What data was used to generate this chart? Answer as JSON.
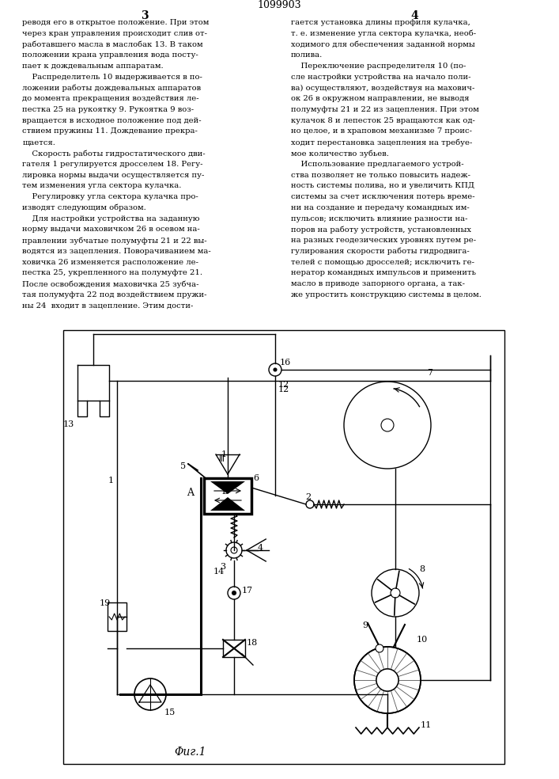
{
  "patent_number": "1099903",
  "page_left": "3",
  "page_right": "4",
  "col1_lines": [
    "реводя его в открытое положение. При этом",
    "через кран управления происходит слив от-",
    "работавшего масла в маслобак 13. В таком",
    "положении крана управления вода посту-",
    "пает к дождевальным аппаратам.",
    "    Распределитель 10 выдерживается в по-",
    "ложении работы дождевальных аппаратов",
    "до момента прекращения воздействия ле-",
    "пестка 25 на рукоятку 9. Рукоятка 9 воз-",
    "вращается в исходное положение под дей-",
    "ствием пружины 11. Дождевание прекра-",
    "щается.",
    "    Скорость работы гидростатического дви-",
    "гателя 1 регулируется дросселем 18. Регу-",
    "лировка нормы выдачи осуществляется пу-",
    "тем изменения угла сектора кулачка.",
    "    Регулировку угла сектора кулачка про-",
    "изводят следующим образом.",
    "    Для настройки устройства на заданную",
    "норму выдачи маховичком 26 в осевом на-",
    "правлении зубчатые полумуфты 21 и 22 вы-",
    "водятся из зацепления. Поворачиванием ма-",
    "ховичка 26 изменяется расположение ле-",
    "пестка 25, укрепленного на полумуфте 21.",
    "После освобождения маховичка 25 зубча-",
    "тая полумуфта 22 под воздействием пружи-",
    "ны 24  входит в зацепление. Этим дости-"
  ],
  "col2_lines": [
    "гается установка длины профиля кулачка,",
    "т. е. изменение угла сектора кулачка, необ-",
    "ходимого для обеспечения заданной нормы",
    "полива.",
    "    Переключение распределителя 10 (по-",
    "сле настройки устройства на начало поли-",
    "ва) осуществляют, воздействуя на махович-",
    "ок 26 в окружном направлении, не выводя",
    "полумуфты 21 и 22 из зацепления. При этом",
    "кулачок 8 и лепесток 25 вращаются как од-",
    "но целое, и в храповом механизме 7 проис-",
    "ходит перестановка зацепления на требуе-",
    "мое количество зубьев.",
    "    Использование предлагаемого устрой-",
    "ства позволяет не только повысить надеж-",
    "ность системы полива, но и увеличить КПД",
    "системы за счет исключения потерь време-",
    "ни на создание и передачу командных им-",
    "пульсов; исключить влияние разности на-",
    "поров на работу устройств, установленных",
    "на разных геодезических уровнях путем ре-",
    "гулирования скорости работы гидродвига-",
    "телей с помощью дросселей; исключить ге-",
    "нератор командных импульсов и применить",
    "масло в приводе запорного органа, а так-",
    "же упростить конструкцию системы в целом."
  ],
  "fig_caption": "Φиг.1",
  "bg_color": "#ffffff"
}
